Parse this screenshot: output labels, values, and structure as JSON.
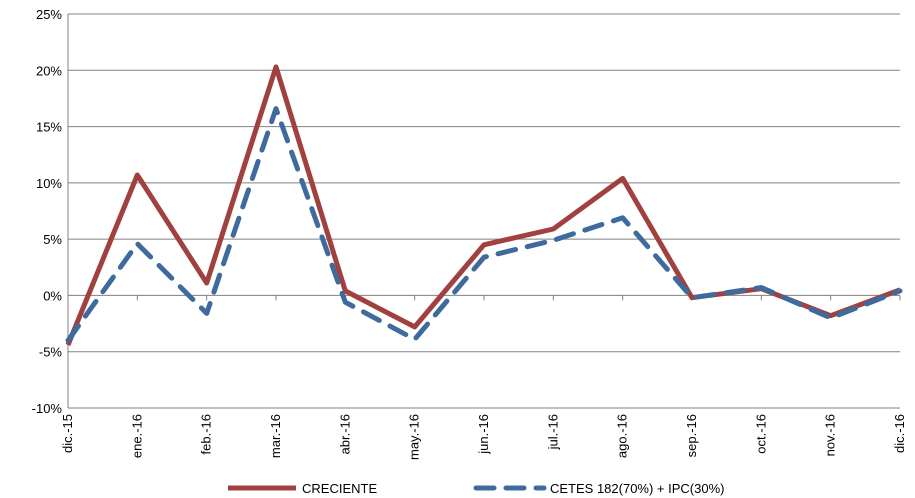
{
  "chart_data": {
    "type": "line",
    "title": "",
    "xlabel": "",
    "ylabel": "",
    "categories": [
      "dic.-15",
      "ene.-16",
      "feb.-16",
      "mar.-16",
      "abr.-16",
      "may.-16",
      "jun.-16",
      "jul.-16",
      "ago.-16",
      "sep.-16",
      "oct.-16",
      "nov.-16",
      "dic.-16"
    ],
    "ylim": [
      -10,
      25
    ],
    "yticks": [
      -10,
      -5,
      0,
      5,
      10,
      15,
      20,
      25
    ],
    "ytick_labels": [
      "-10%",
      "-5%",
      "0%",
      "5%",
      "10%",
      "15%",
      "20%",
      "25%"
    ],
    "grid": true,
    "legend_position": "bottom",
    "series": [
      {
        "name": "CRECIENTE",
        "color": "#a0413f",
        "style": "solid",
        "values": [
          -4.4,
          10.7,
          1.1,
          20.3,
          0.4,
          -2.8,
          4.5,
          5.9,
          10.4,
          -0.2,
          0.6,
          -1.8,
          0.5
        ]
      },
      {
        "name": "CETES 182(70%) + IPC(30%)",
        "color": "#3f6a9e",
        "style": "dashed",
        "values": [
          -4.0,
          4.6,
          -1.6,
          16.6,
          -0.6,
          -3.9,
          3.4,
          4.9,
          6.9,
          -0.2,
          0.7,
          -2.0,
          0.4
        ]
      }
    ]
  }
}
